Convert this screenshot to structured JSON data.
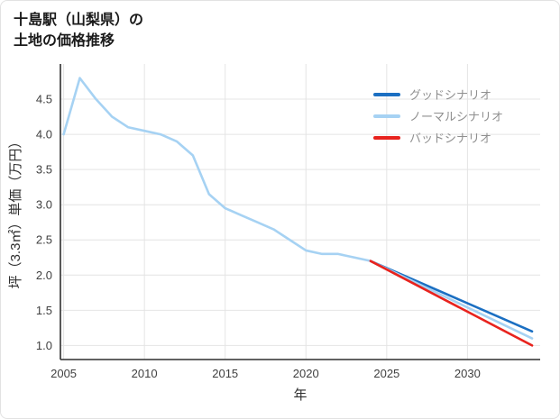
{
  "page": {
    "title_line1": "十島駅（山梨県）の",
    "title_line2": "土地の価格推移"
  },
  "chart_data": {
    "type": "line",
    "title": "十島駅（山梨県）の土地の価格推移",
    "xlabel": "年",
    "ylabel": "坪（3.3㎡）単価（万円）",
    "xlim": [
      2004.8,
      2034.5
    ],
    "ylim": [
      0.8,
      5.0
    ],
    "x_ticks": [
      2005,
      2010,
      2015,
      2020,
      2025,
      2030
    ],
    "y_ticks": [
      1.0,
      1.5,
      2.0,
      2.5,
      3.0,
      3.5,
      4.0,
      4.5
    ],
    "grid": true,
    "legend_position": "top-right",
    "series": [
      {
        "name": "グッドシナリオ",
        "color": "#1b6fc2",
        "x": [
          2024,
          2034
        ],
        "y": [
          2.2,
          1.2
        ]
      },
      {
        "name": "ノーマルシナリオ",
        "color": "#a6d2f3",
        "x": [
          2005,
          2006,
          2007,
          2008,
          2009,
          2010,
          2011,
          2012,
          2013,
          2014,
          2015,
          2016,
          2017,
          2018,
          2019,
          2020,
          2021,
          2022,
          2023,
          2024,
          2034
        ],
        "y": [
          4.0,
          4.8,
          4.5,
          4.25,
          4.1,
          4.05,
          4.0,
          3.9,
          3.7,
          3.15,
          2.95,
          2.85,
          2.75,
          2.65,
          2.5,
          2.35,
          2.3,
          2.3,
          2.25,
          2.2,
          1.1
        ]
      },
      {
        "name": "バッドシナリオ",
        "color": "#e8231e",
        "x": [
          2024,
          2034
        ],
        "y": [
          2.2,
          1.0
        ]
      }
    ]
  }
}
